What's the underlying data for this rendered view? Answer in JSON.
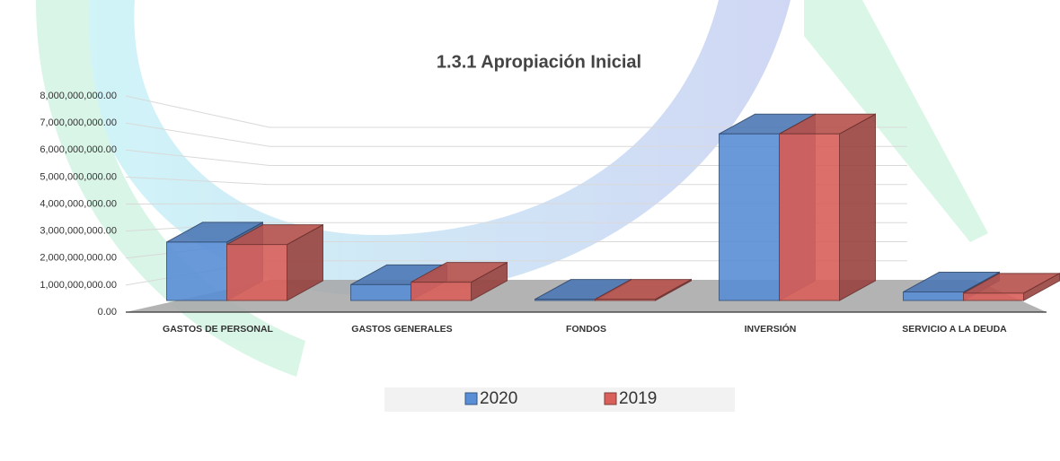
{
  "chart_data": {
    "type": "bar",
    "title": "1.3.1 Apropiación Inicial",
    "categories": [
      "GASTOS DE PERSONAL",
      "GASTOS GENERALES",
      "FONDOS",
      "INVERSIÓN",
      "SERVICIO A LA DEUDA"
    ],
    "series": [
      {
        "name": "2020",
        "color": "#5a8ed6",
        "values": [
          2400000000,
          650000000,
          50000000,
          6850000000,
          350000000
        ]
      },
      {
        "name": "2019",
        "color": "#d9605a",
        "values": [
          2300000000,
          750000000,
          50000000,
          6850000000,
          300000000
        ]
      }
    ],
    "ylim": [
      0,
      8000000000
    ],
    "yticks": [
      {
        "value": 0,
        "label": "0.00"
      },
      {
        "value": 1000000000,
        "label": "1,000,000,000.00"
      },
      {
        "value": 2000000000,
        "label": "2,000,000,000.00"
      },
      {
        "value": 3000000000,
        "label": "3,000,000,000.00"
      },
      {
        "value": 4000000000,
        "label": "4,000,000,000.00"
      },
      {
        "value": 5000000000,
        "label": "5,000,000,000.00"
      },
      {
        "value": 6000000000,
        "label": "6,000,000,000.00"
      },
      {
        "value": 7000000000,
        "label": "7,000,000,000.00"
      },
      {
        "value": 8000000000,
        "label": "8,000,000,000.00"
      }
    ],
    "grid": true,
    "legend": "bottom"
  }
}
